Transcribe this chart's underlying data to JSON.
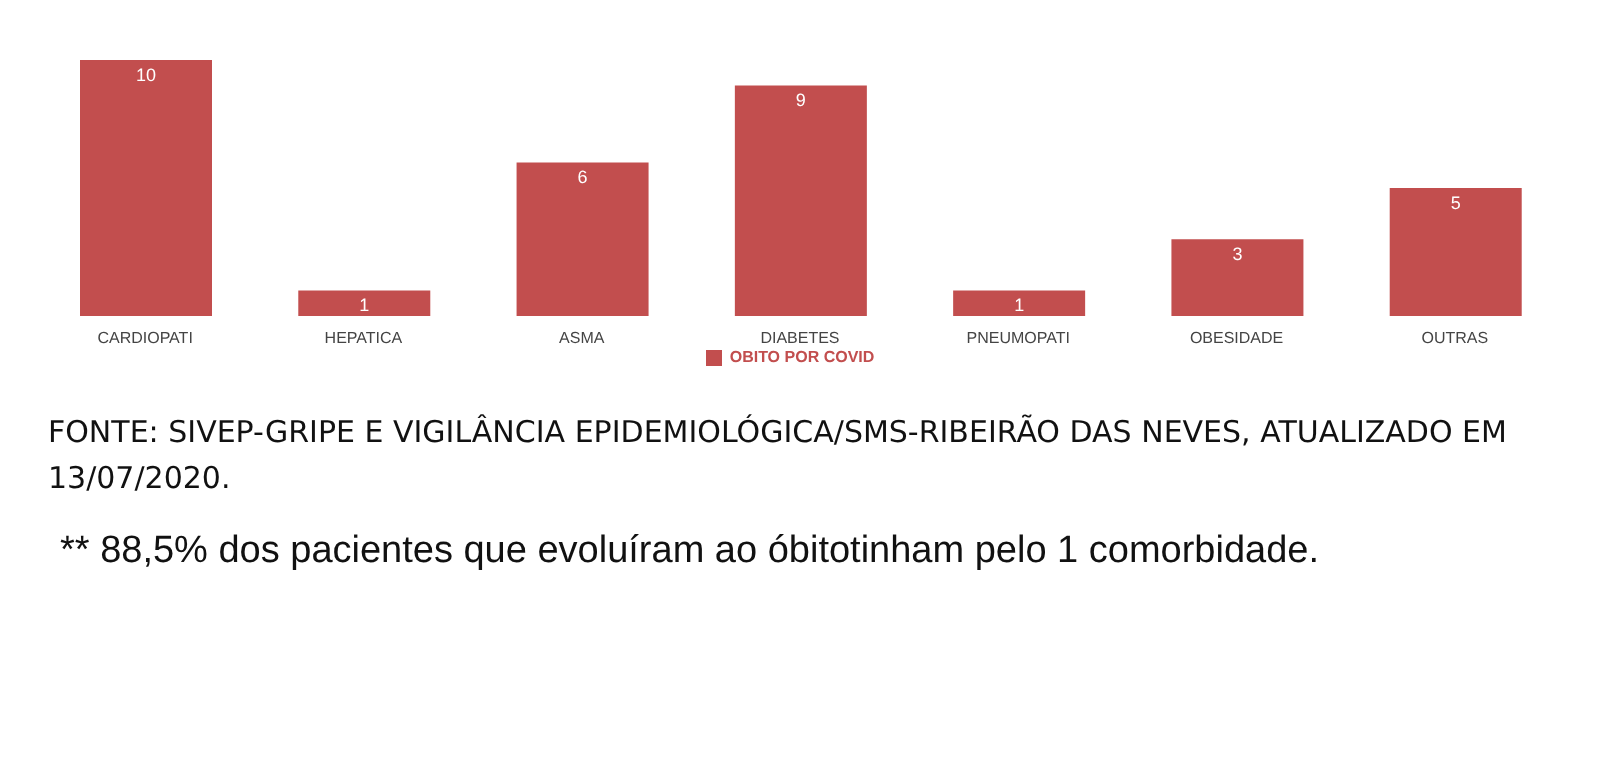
{
  "chart_data": {
    "type": "bar",
    "categories": [
      "CARDIOPATI",
      "HEPATICA",
      "ASMA",
      "DIABETES",
      "PNEUMOPATI",
      "OBESIDADE",
      "OUTRAS"
    ],
    "series": [
      {
        "name": "OBITO POR COVID",
        "color": "#c24e4e",
        "values": [
          10,
          1,
          6,
          9,
          1,
          3,
          5
        ]
      }
    ],
    "data_labels": true,
    "legend": "bottom",
    "grid": false,
    "annotations": [
      "FONTE: SIVEP-GRIPE E VIGILÂNCIA EPIDEMIOLÓGICA/SMS-RIBEIRÃO DAS NEVES, ATUALIZADO EM 13/07/2020.",
      "** 88,5% dos pacientes que evoluíram ao óbitotinham pelo 1 comorbidade."
    ]
  }
}
